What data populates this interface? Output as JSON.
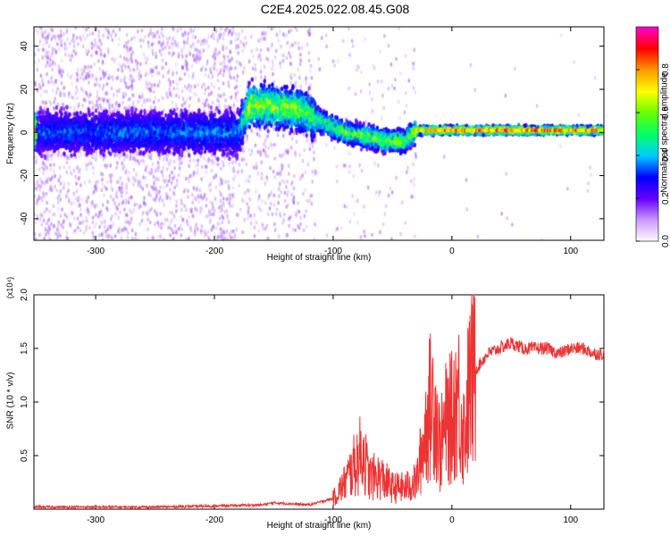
{
  "title": "C2E4.2025.022.08.45.G08",
  "chart_data": [
    {
      "type": "heatmap",
      "title": "C2E4.2025.022.08.45.G08",
      "xlabel": "Height of straight line (km)",
      "ylabel": "Frequency (Hz)",
      "xlim": [
        -352,
        128
      ],
      "ylim": [
        -50,
        49
      ],
      "x_ticks": [
        -300,
        -200,
        -100,
        0,
        100
      ],
      "y_ticks": [
        -40,
        -20,
        0,
        20,
        40
      ],
      "colorbar": {
        "label": "Normalized spectral amplitude",
        "range": [
          0.0,
          1.0
        ],
        "ticks": [
          "0.0",
          "0.2",
          "0.4",
          "0.6",
          "0.8"
        ],
        "colormap": [
          "#ffffff",
          "#cc99ff",
          "#6600ff",
          "#0000ff",
          "#00ccff",
          "#00ff66",
          "#66ff00",
          "#ffff00",
          "#ff9900",
          "#ff0000",
          "#ff00cc"
        ]
      },
      "central_ridge": [
        {
          "x": -350,
          "f": 0,
          "amp": 0.25
        },
        {
          "x": -180,
          "f": 0,
          "amp": 0.3
        },
        {
          "x": -170,
          "f": 13,
          "amp": 0.7
        },
        {
          "x": -130,
          "f": 11,
          "amp": 0.6
        },
        {
          "x": -110,
          "f": 5,
          "amp": 0.5
        },
        {
          "x": -90,
          "f": 0,
          "amp": 0.55
        },
        {
          "x": -70,
          "f": -2,
          "amp": 0.6
        },
        {
          "x": -55,
          "f": -4,
          "amp": 0.6
        },
        {
          "x": -40,
          "f": -4,
          "amp": 0.6
        },
        {
          "x": -30,
          "f": 1,
          "amp": 0.7
        },
        {
          "x": 0,
          "f": 1,
          "amp": 0.85
        },
        {
          "x": 50,
          "f": 1,
          "amp": 0.85
        },
        {
          "x": 125,
          "f": 1,
          "amp": 0.8
        }
      ]
    },
    {
      "type": "line",
      "xlabel": "Height of straight line (km)",
      "ylabel": "SNR (10 * v/v)",
      "scale_label": "(x10⁴)",
      "xlim": [
        -352,
        128
      ],
      "ylim": [
        0,
        2.0
      ],
      "x_ticks": [
        -300,
        -200,
        -100,
        0,
        100
      ],
      "y_ticks": [
        "0.5",
        "1.0",
        "1.5",
        "2.0"
      ],
      "color": "#ee3333",
      "x": [
        -352,
        -300,
        -250,
        -200,
        -160,
        -150,
        -120,
        -100,
        -90,
        -80,
        -75,
        -70,
        -60,
        -50,
        -40,
        -30,
        -25,
        -20,
        -15,
        -10,
        -5,
        0,
        5,
        10,
        15,
        20,
        30,
        40,
        50,
        60,
        70,
        80,
        90,
        100,
        110,
        120,
        128
      ],
      "y": [
        0.02,
        0.02,
        0.02,
        0.03,
        0.04,
        0.06,
        0.04,
        0.1,
        0.25,
        0.45,
        0.55,
        0.3,
        0.3,
        0.2,
        0.2,
        0.25,
        0.55,
        0.9,
        1.05,
        0.55,
        0.8,
        0.85,
        1.1,
        0.7,
        1.15,
        1.3,
        1.45,
        1.5,
        1.55,
        1.5,
        1.5,
        1.5,
        1.45,
        1.5,
        1.5,
        1.45,
        1.45
      ]
    }
  ]
}
